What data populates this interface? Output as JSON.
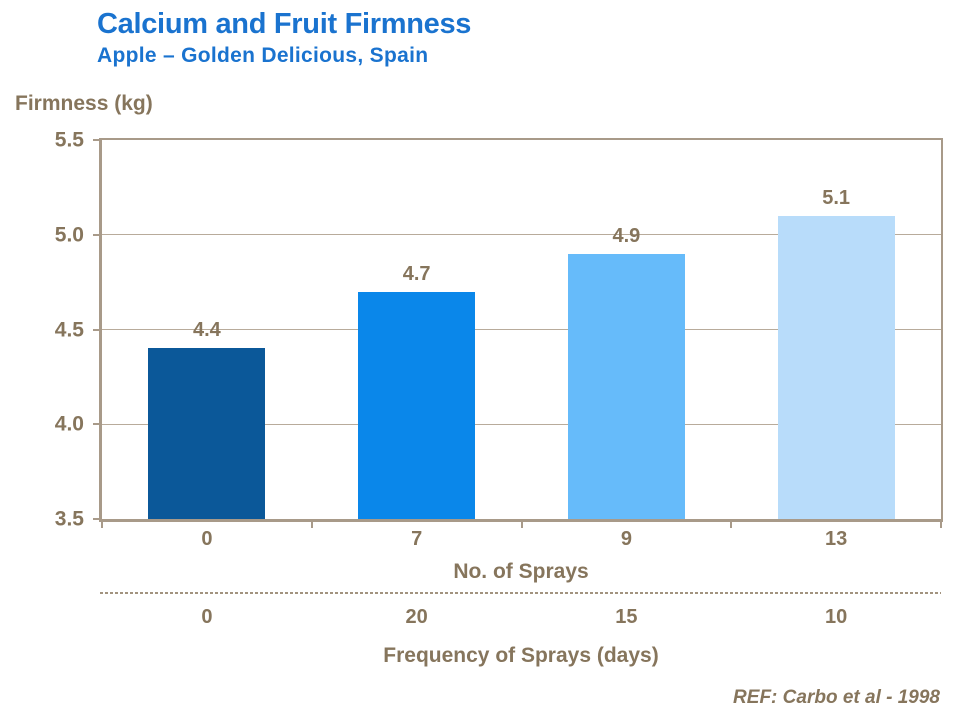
{
  "header": {
    "title": "Calcium and Fruit Firmness",
    "subtitle": "Apple – Golden Delicious, Spain"
  },
  "chart_data": {
    "type": "bar",
    "title": "Calcium and Fruit Firmness",
    "subtitle": "Apple – Golden Delicious, Spain",
    "ylabel": "Firmness (kg)",
    "xlabel": "No. of Sprays",
    "ylim": [
      3.5,
      5.5
    ],
    "yticks": [
      "5.5",
      "5.0",
      "4.5",
      "4.0",
      "3.5"
    ],
    "grid": true,
    "legend": "none",
    "categories": [
      "0",
      "7",
      "9",
      "13"
    ],
    "values": [
      4.4,
      4.7,
      4.9,
      5.1
    ],
    "value_labels": [
      "4.4",
      "4.7",
      "4.9",
      "5.1"
    ],
    "bar_colors": [
      "#0b5899",
      "#0a87ea",
      "#66bbfa",
      "#b8dcfa"
    ],
    "secondary_axis": {
      "label": "Frequency of Sprays (days)",
      "values": [
        "0",
        "20",
        "15",
        "10"
      ]
    }
  },
  "footer": {
    "ref": "REF: Carbo et al - 1998"
  },
  "colors": {
    "title_blue": "#1a73cf",
    "chart_text": "#86755c",
    "axis_line": "#a89a89",
    "gridline": "#b8ab9b",
    "dash_line": "#a2937f"
  }
}
